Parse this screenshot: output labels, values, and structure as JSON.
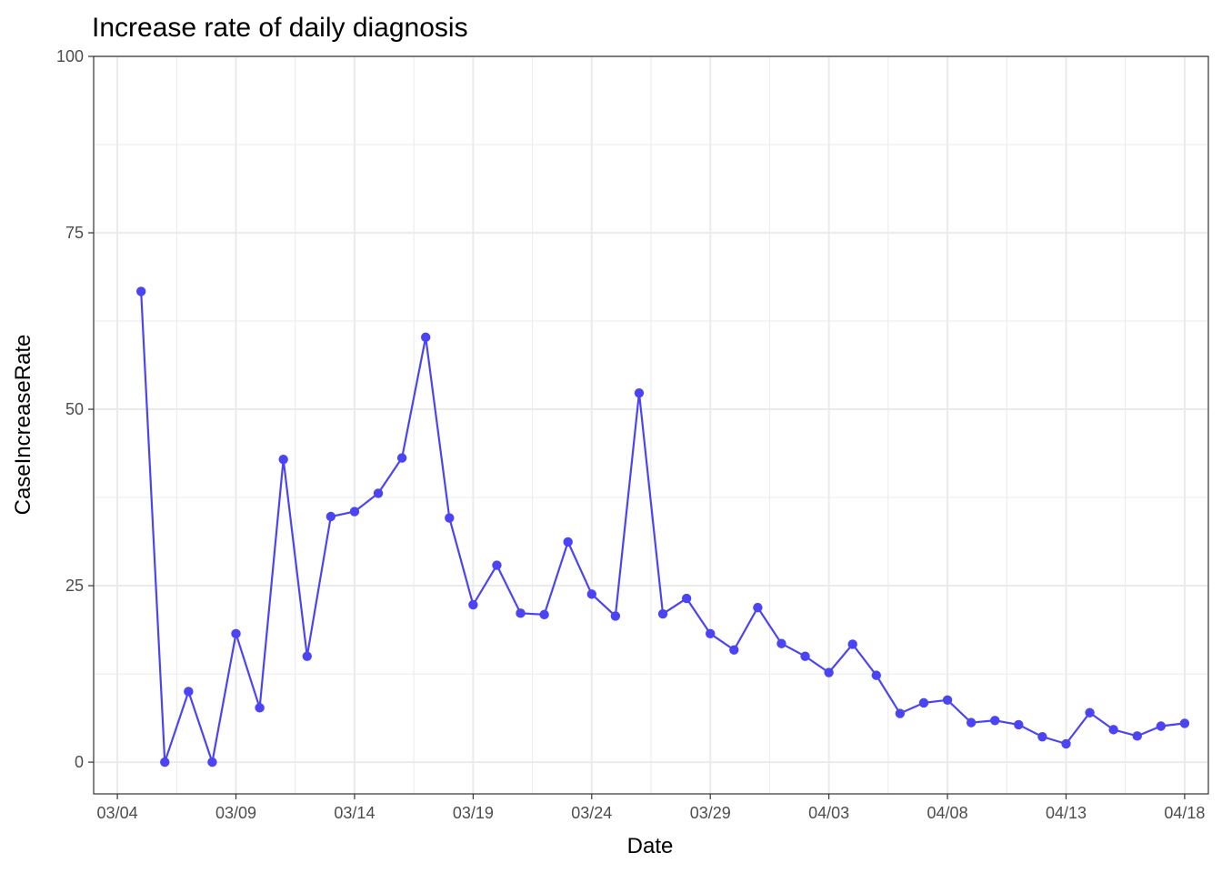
{
  "chart_data": {
    "type": "line",
    "title": "Increase rate of daily diagnosis",
    "xlabel": "Date",
    "ylabel": "CaseIncreaseRate",
    "ylim": [
      -4.5,
      100
    ],
    "xlim": [
      "2020-03-03",
      "2020-04-19"
    ],
    "yticks": [
      0,
      25,
      50,
      75,
      100
    ],
    "xticks": [
      {
        "date": "2020-03-04",
        "label": "03/04"
      },
      {
        "date": "2020-03-09",
        "label": "03/09"
      },
      {
        "date": "2020-03-14",
        "label": "03/14"
      },
      {
        "date": "2020-03-19",
        "label": "03/19"
      },
      {
        "date": "2020-03-24",
        "label": "03/24"
      },
      {
        "date": "2020-03-29",
        "label": "03/29"
      },
      {
        "date": "2020-04-03",
        "label": "04/03"
      },
      {
        "date": "2020-04-08",
        "label": "04/08"
      },
      {
        "date": "2020-04-13",
        "label": "04/13"
      },
      {
        "date": "2020-04-18",
        "label": "04/18"
      }
    ],
    "grid": true,
    "color": "#4b44f5",
    "x": [
      "2020-03-05",
      "2020-03-06",
      "2020-03-07",
      "2020-03-08",
      "2020-03-09",
      "2020-03-10",
      "2020-03-11",
      "2020-03-12",
      "2020-03-13",
      "2020-03-14",
      "2020-03-15",
      "2020-03-16",
      "2020-03-17",
      "2020-03-18",
      "2020-03-19",
      "2020-03-20",
      "2020-03-21",
      "2020-03-22",
      "2020-03-23",
      "2020-03-24",
      "2020-03-25",
      "2020-03-26",
      "2020-03-27",
      "2020-03-28",
      "2020-03-29",
      "2020-03-30",
      "2020-03-31",
      "2020-04-01",
      "2020-04-02",
      "2020-04-03",
      "2020-04-04",
      "2020-04-05",
      "2020-04-06",
      "2020-04-07",
      "2020-04-08",
      "2020-04-09",
      "2020-04-10",
      "2020-04-11",
      "2020-04-12",
      "2020-04-13",
      "2020-04-14",
      "2020-04-15",
      "2020-04-16",
      "2020-04-17",
      "2020-04-18"
    ],
    "y": [
      66.7,
      0,
      10,
      0,
      18.2,
      7.7,
      42.9,
      15,
      34.8,
      35.5,
      38.1,
      43.1,
      60.2,
      34.6,
      22.3,
      27.9,
      21.1,
      20.9,
      31.2,
      23.8,
      20.7,
      52.3,
      21,
      23.2,
      18.2,
      15.9,
      21.9,
      16.8,
      15,
      12.7,
      16.7,
      12.3,
      6.9,
      8.4,
      8.8,
      5.6,
      5.9,
      5.3,
      3.6,
      2.6,
      7,
      4.6,
      3.7,
      5.1,
      5.5
    ]
  }
}
